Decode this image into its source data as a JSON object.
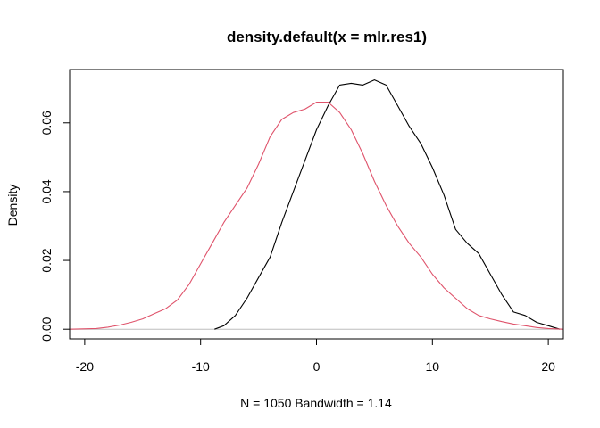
{
  "chart_data": {
    "type": "line",
    "title": "density.default(x = mlr.res1)",
    "xlabel": "N = 1050   Bandwidth = 1.14",
    "ylabel": "Density",
    "xlim": [
      -21.3,
      21.3
    ],
    "ylim": [
      -0.0028,
      0.0755
    ],
    "x_ticks": [
      -20,
      -10,
      0,
      10,
      20
    ],
    "x_tick_labels": [
      "-20",
      "-10",
      "0",
      "10",
      "20"
    ],
    "y_ticks": [
      0.0,
      0.02,
      0.04,
      0.06
    ],
    "y_tick_labels": [
      "0.00",
      "0.02",
      "0.04",
      "0.06"
    ],
    "grid": false,
    "baseline": {
      "y": 0,
      "color": "#bebebe"
    },
    "series": [
      {
        "color": "#000000",
        "x": [
          -8.8,
          -8,
          -7,
          -6,
          -5,
          -4,
          -3,
          -2,
          -1,
          0,
          1,
          2,
          3,
          4,
          5,
          6,
          7,
          8,
          9,
          10,
          11,
          12,
          13,
          14,
          15,
          16,
          17,
          18,
          19,
          20,
          21
        ],
        "y": [
          0.0,
          0.001,
          0.004,
          0.009,
          0.015,
          0.021,
          0.031,
          0.04,
          0.049,
          0.058,
          0.065,
          0.071,
          0.0715,
          0.071,
          0.0725,
          0.071,
          0.065,
          0.059,
          0.054,
          0.047,
          0.039,
          0.029,
          0.025,
          0.022,
          0.016,
          0.01,
          0.005,
          0.004,
          0.002,
          0.001,
          0.0
        ]
      },
      {
        "color": "#df536b",
        "x": [
          -21.3,
          -19,
          -18,
          -17,
          -16,
          -15,
          -14,
          -13,
          -12,
          -11,
          -10,
          -9,
          -8,
          -7,
          -6,
          -5,
          -4,
          -3,
          -2,
          -1,
          0,
          1,
          2,
          3,
          4,
          5,
          6,
          7,
          8,
          9,
          10,
          11,
          12,
          13,
          14,
          15,
          16,
          17,
          18,
          19,
          20,
          21.3
        ],
        "y": [
          0.0,
          0.0002,
          0.0006,
          0.0012,
          0.002,
          0.003,
          0.0045,
          0.006,
          0.0085,
          0.013,
          0.019,
          0.025,
          0.031,
          0.036,
          0.041,
          0.048,
          0.056,
          0.061,
          0.063,
          0.064,
          0.066,
          0.066,
          0.063,
          0.058,
          0.051,
          0.043,
          0.036,
          0.03,
          0.025,
          0.021,
          0.016,
          0.012,
          0.009,
          0.006,
          0.004,
          0.003,
          0.0022,
          0.0015,
          0.001,
          0.0005,
          0.0002,
          0.0
        ]
      }
    ]
  }
}
